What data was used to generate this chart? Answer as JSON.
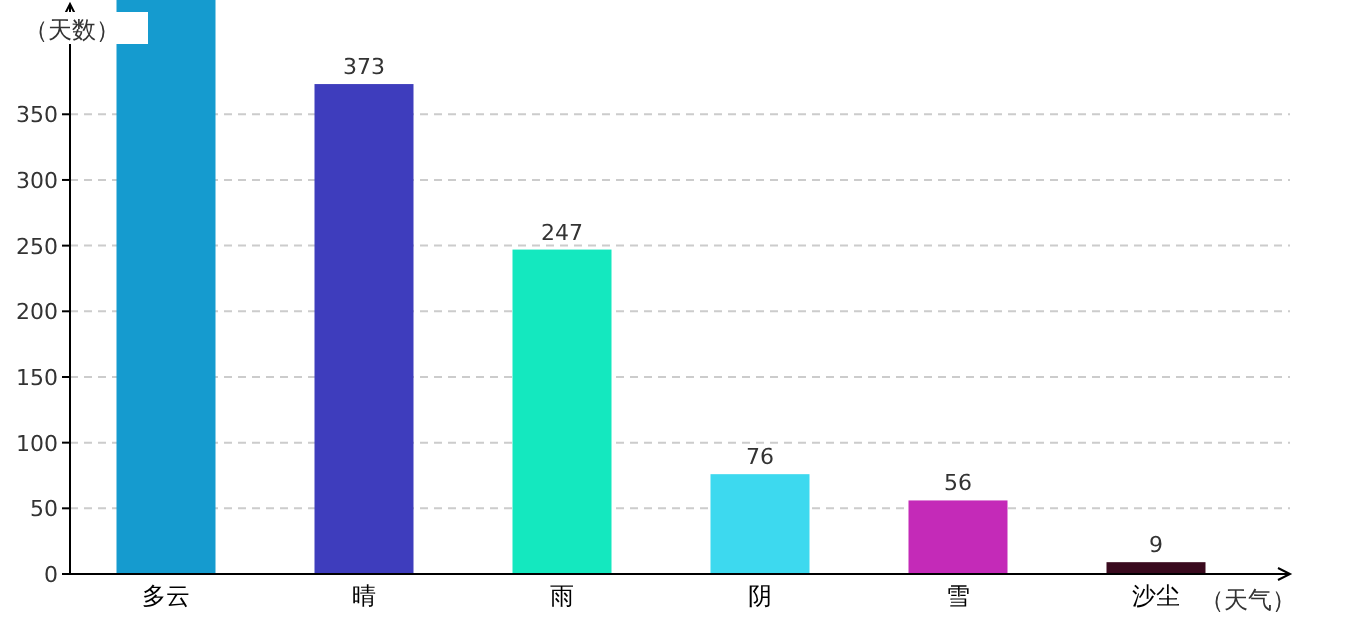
{
  "chart_data": {
    "type": "bar",
    "xlabel": "（天气）",
    "ylabel": "（天数）",
    "categories": [
      "多云",
      "晴",
      "雨",
      "阴",
      "雪",
      "沙尘"
    ],
    "values": [
      437,
      373,
      247,
      76,
      56,
      9
    ],
    "colors": [
      "#159bcf",
      "#3e3dbd",
      "#14e8bf",
      "#3dd9ef",
      "#c42ab8",
      "#3a0a1e"
    ],
    "value_labels": [
      null,
      "373",
      "247",
      "76",
      "56",
      "9"
    ],
    "ylim": [
      0,
      437
    ],
    "yticks": [
      0,
      50,
      100,
      150,
      200,
      250,
      300,
      350
    ],
    "grid": "y"
  }
}
